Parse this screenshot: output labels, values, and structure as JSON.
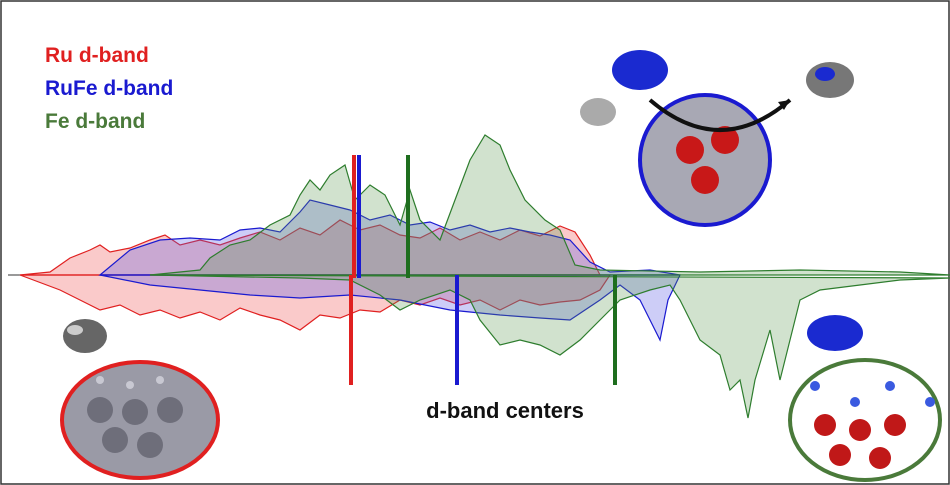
{
  "legend": {
    "items": [
      "Ru d-band",
      "RuFe d-band",
      "Fe d-band"
    ]
  },
  "caption": "d-band centers"
}
